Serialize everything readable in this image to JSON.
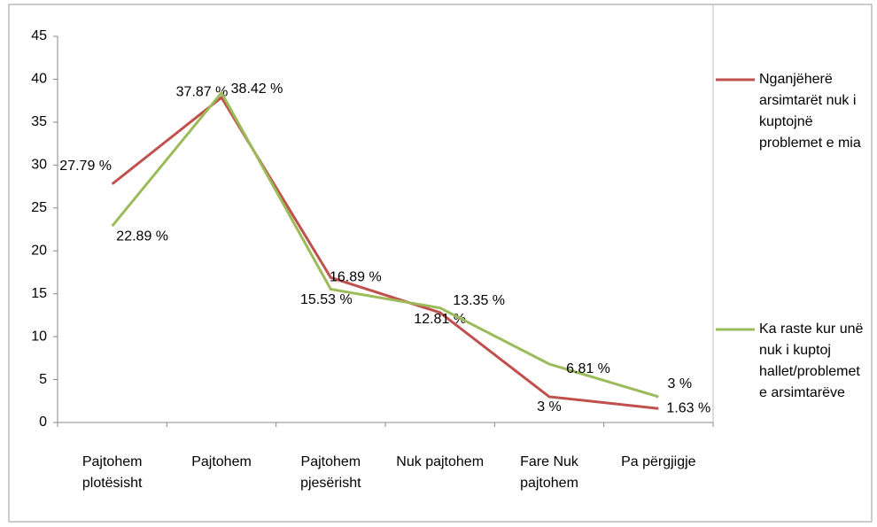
{
  "chart_data": {
    "type": "line",
    "categories": [
      "Pajtohem plotësisht",
      "Pajtohem",
      "Pajtohem pjesërisht",
      "Nuk pajtohem",
      "Fare Nuk pajtohem",
      "Pa përgjigje"
    ],
    "series": [
      {
        "name": "Nganjëherë arsimtarët nuk i kuptojnë problemet e mia",
        "color": "#c0504d",
        "values": [
          27.79,
          37.87,
          16.89,
          12.81,
          3,
          1.63
        ],
        "value_labels": [
          "27.79 %",
          "37.87 %",
          "16.89 %",
          "12.81 %",
          "3 %",
          "1.63 %"
        ]
      },
      {
        "name": "Ka raste kur unë nuk i kuptoj hallet/problemet e arsimtarëve",
        "color": "#9bbb59",
        "values": [
          22.89,
          38.42,
          15.53,
          13.35,
          6.81,
          3
        ],
        "value_labels": [
          "22.89 %",
          "38.42 %",
          "15.53 %",
          "13.35 %",
          "6.81 %",
          "3 %"
        ]
      }
    ],
    "ylim": [
      0,
      45
    ],
    "yticks": [
      0,
      5,
      10,
      15,
      20,
      25,
      30,
      35,
      40,
      45
    ],
    "legend": "right"
  }
}
